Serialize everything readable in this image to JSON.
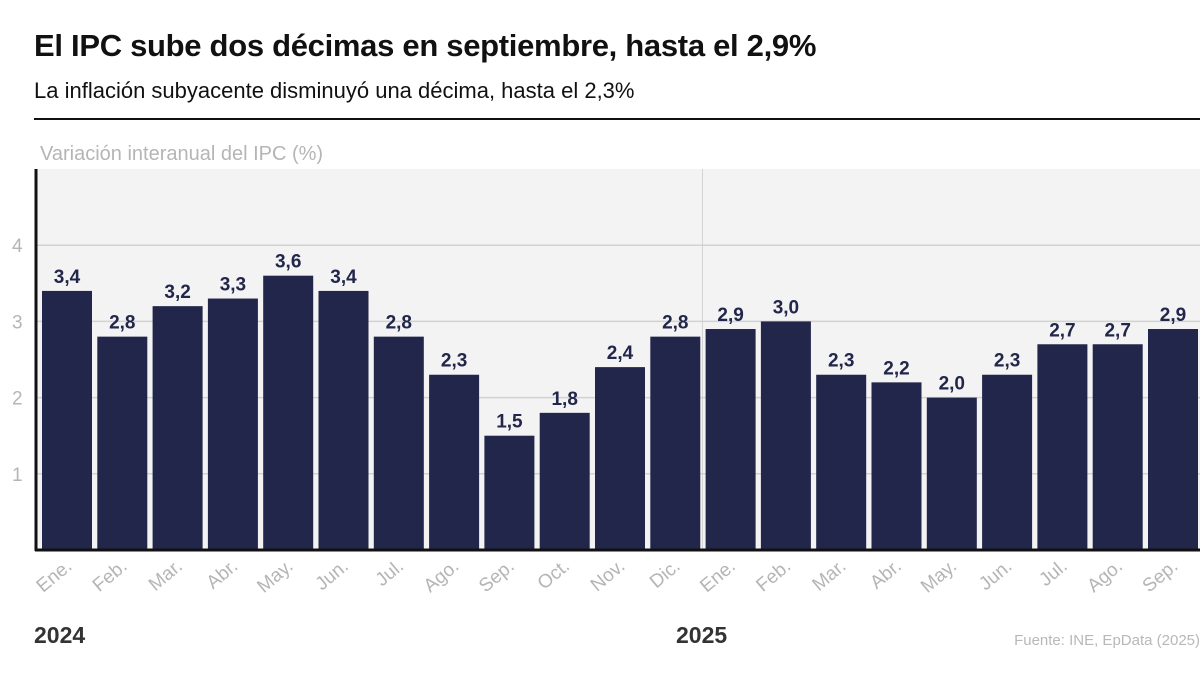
{
  "header": {
    "title": "El IPC sube dos décimas en septiembre, hasta el 2,9%",
    "subtitle": "La inflación subyacente disminuyó una décima, hasta el 2,3%"
  },
  "chart_data": {
    "type": "bar",
    "title": "El IPC sube dos décimas en septiembre, hasta el 2,9%",
    "subtitle": "La inflación subyacente disminuyó una décima, hasta el 2,3%",
    "ylabel": "Variación interanual del IPC (%)",
    "xlabel": "",
    "ylim": [
      0,
      5
    ],
    "yticks": [
      1,
      2,
      3,
      4
    ],
    "grid": true,
    "categories": [
      "Ene.",
      "Feb.",
      "Mar.",
      "Abr.",
      "May.",
      "Jun.",
      "Jul.",
      "Ago.",
      "Sep.",
      "Oct.",
      "Nov.",
      "Dic.",
      "Ene.",
      "Feb.",
      "Mar.",
      "Abr.",
      "May.",
      "Jun.",
      "Jul.",
      "Ago.",
      "Sep."
    ],
    "values": [
      3.4,
      2.8,
      3.2,
      3.3,
      3.6,
      3.4,
      2.8,
      2.3,
      1.5,
      1.8,
      2.4,
      2.8,
      2.9,
      3.0,
      2.3,
      2.2,
      2.0,
      2.3,
      2.7,
      2.7,
      2.9
    ],
    "value_labels": [
      "3,4",
      "2,8",
      "3,2",
      "3,3",
      "3,6",
      "3,4",
      "2,8",
      "2,3",
      "1,5",
      "1,8",
      "2,4",
      "2,8",
      "2,9",
      "3,0",
      "2,3",
      "2,2",
      "2,0",
      "2,3",
      "2,7",
      "2,7",
      "2,9"
    ],
    "year_labels": [
      "2024",
      "2025"
    ],
    "source": "Fuente: INE, EpData (2025)",
    "colors": {
      "bar": "#21264a",
      "plot_background": "#f3f3f3",
      "grid": "#d2d2d2",
      "axis": "#111111",
      "value_label": "#21264a",
      "tick_label": "#b5b5b5"
    }
  }
}
